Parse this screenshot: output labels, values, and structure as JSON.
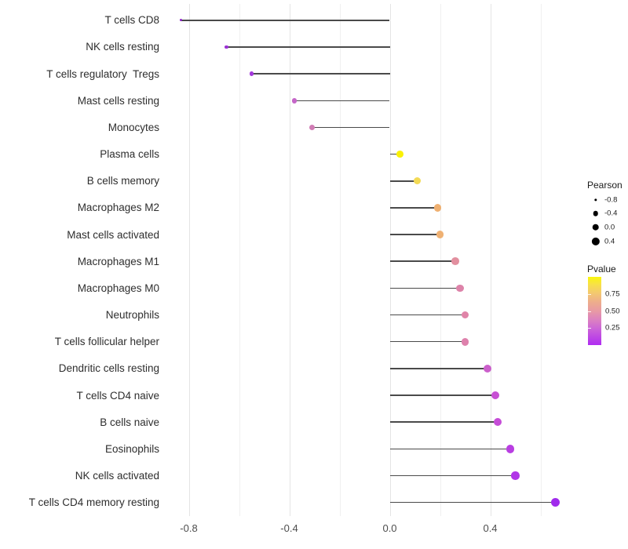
{
  "chart_data": {
    "type": "scatter",
    "variant": "lollipop",
    "title": "",
    "xlabel": "",
    "ylabel": "",
    "xlim": [
      -0.9,
      0.73
    ],
    "grid": true,
    "x_axis": {
      "tick_labels": [
        "-0.8",
        "-0.4",
        "0.0",
        "0.4"
      ],
      "tick_values": [
        -0.8,
        -0.4,
        0.0,
        0.4
      ],
      "minor_gridlines": [
        -0.6,
        -0.2,
        0.2,
        0.6
      ]
    },
    "points": [
      {
        "category": "T cells CD8",
        "pearson": -0.83,
        "pvalue_est": 0.005,
        "color": "#8E24C9"
      },
      {
        "category": "NK cells resting",
        "pearson": -0.65,
        "pvalue_est": 0.04,
        "color": "#9B31D4"
      },
      {
        "category": "T cells regulatory  Tregs",
        "pearson": -0.55,
        "pvalue_est": 0.07,
        "color": "#A338DC"
      },
      {
        "category": "Mast cells resting",
        "pearson": -0.38,
        "pvalue_est": 0.22,
        "color": "#C566C8"
      },
      {
        "category": "Monocytes",
        "pearson": -0.31,
        "pvalue_est": 0.29,
        "color": "#D17CB5"
      },
      {
        "category": "Plasma cells",
        "pearson": 0.04,
        "pvalue_est": 0.9,
        "color": "#FAF105"
      },
      {
        "category": "B cells memory",
        "pearson": 0.11,
        "pvalue_est": 0.74,
        "color": "#F3DA55"
      },
      {
        "category": "Macrophages M2",
        "pearson": 0.19,
        "pvalue_est": 0.56,
        "color": "#EFB071"
      },
      {
        "category": "Mast cells activated",
        "pearson": 0.2,
        "pvalue_est": 0.56,
        "color": "#EFB173"
      },
      {
        "category": "Macrophages M1",
        "pearson": 0.26,
        "pvalue_est": 0.44,
        "color": "#E28F9F"
      },
      {
        "category": "Macrophages M0",
        "pearson": 0.28,
        "pvalue_est": 0.4,
        "color": "#DD83A9"
      },
      {
        "category": "Neutrophils",
        "pearson": 0.3,
        "pvalue_est": 0.4,
        "color": "#E084A8"
      },
      {
        "category": "T cells follicular helper",
        "pearson": 0.3,
        "pvalue_est": 0.38,
        "color": "#DE81AC"
      },
      {
        "category": "Dendritic cells resting",
        "pearson": 0.39,
        "pvalue_est": 0.21,
        "color": "#CB5FCB"
      },
      {
        "category": "T cells CD4 naive",
        "pearson": 0.42,
        "pvalue_est": 0.17,
        "color": "#C750D4"
      },
      {
        "category": "B cells naive",
        "pearson": 0.43,
        "pvalue_est": 0.16,
        "color": "#C54CD7"
      },
      {
        "category": "Eosinophils",
        "pearson": 0.48,
        "pvalue_est": 0.11,
        "color": "#B93EE2"
      },
      {
        "category": "NK cells activated",
        "pearson": 0.5,
        "pvalue_est": 0.09,
        "color": "#B136E7"
      },
      {
        "category": "T cells CD4 memory resting",
        "pearson": 0.66,
        "pvalue_est": 0.02,
        "color": "#A02BEC"
      }
    ],
    "legend_size": {
      "title": "Pearson",
      "entries": [
        {
          "label": "-0.8",
          "value": -0.8
        },
        {
          "label": "-0.4",
          "value": -0.4
        },
        {
          "label": "0.0",
          "value": 0.0
        },
        {
          "label": "0.4",
          "value": 0.4
        }
      ],
      "dot_color": "#000000"
    },
    "legend_color": {
      "title": "Pvalue",
      "labels": [
        {
          "label": "0.75",
          "value": 0.75
        },
        {
          "label": "0.50",
          "value": 0.5
        },
        {
          "label": "0.25",
          "value": 0.25
        }
      ],
      "gradient_stops_bottom_to_top": [
        "#B02CF2",
        "#BE49E3",
        "#CD67D6",
        "#DC82C0",
        "#E89AA4",
        "#EDAC8D",
        "#F3C673",
        "#F7DE4E",
        "#FAF70D"
      ]
    },
    "style_colors": {
      "stem": "#4a4a4a",
      "gridline_major": "#e4e4e4",
      "gridline_minor": "#f0f0f0",
      "axis_text": "#4d4d4d",
      "label_text": "#2e2e2e"
    }
  }
}
